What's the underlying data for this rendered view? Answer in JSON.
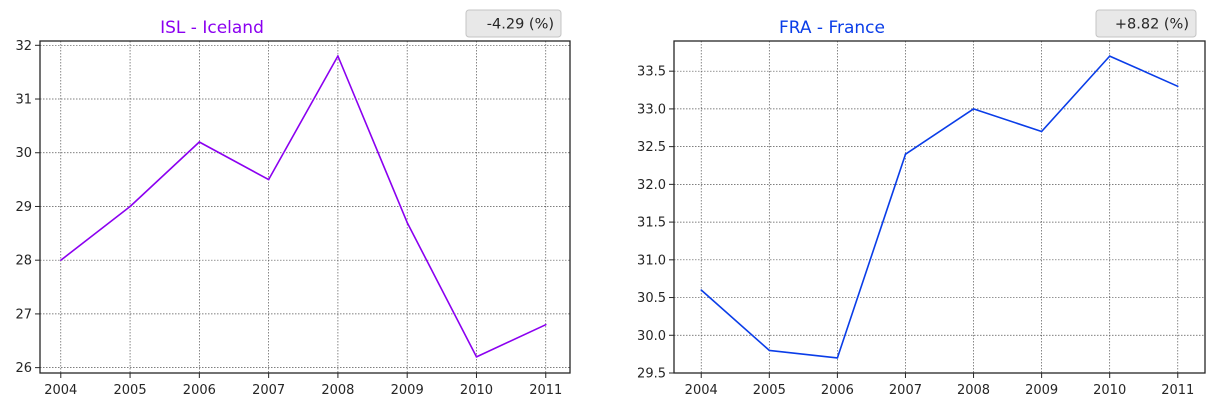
{
  "chart_data": [
    {
      "type": "line",
      "title": "ISL - Iceland",
      "badge": "-4.29 (%)",
      "color": "#8b00f0",
      "x": [
        2004,
        2005,
        2006,
        2007,
        2008,
        2009,
        2010,
        2011
      ],
      "series": [
        {
          "values": [
            28.0,
            29.0,
            30.2,
            29.5,
            31.8,
            28.7,
            26.2,
            26.8
          ]
        }
      ],
      "xlim": [
        2003.7,
        2011.35
      ],
      "ylim": [
        25.9,
        32.08
      ],
      "yticks": [
        26,
        27,
        28,
        29,
        30,
        31,
        32
      ],
      "ytick_labels": [
        "26",
        "27",
        "28",
        "29",
        "30",
        "31",
        "32"
      ],
      "xtick_labels": [
        "2004",
        "2005",
        "2006",
        "2007",
        "2008",
        "2009",
        "2010",
        "2011"
      ],
      "xlabel": "",
      "ylabel": "",
      "grid": true
    },
    {
      "type": "line",
      "title": "FRA - France",
      "badge": "+8.82 (%)",
      "color": "#0a3de8",
      "x": [
        2004,
        2005,
        2006,
        2007,
        2008,
        2009,
        2010,
        2011
      ],
      "series": [
        {
          "values": [
            30.6,
            29.8,
            29.7,
            32.4,
            33.0,
            32.7,
            33.7,
            33.3
          ]
        }
      ],
      "xlim": [
        2003.6,
        2011.4
      ],
      "ylim": [
        29.5,
        33.9
      ],
      "yticks": [
        29.5,
        30.0,
        30.5,
        31.0,
        31.5,
        32.0,
        32.5,
        33.0,
        33.5
      ],
      "ytick_labels": [
        "29.5",
        "30.0",
        "30.5",
        "31.0",
        "31.5",
        "32.0",
        "32.5",
        "33.0",
        "33.5"
      ],
      "xtick_labels": [
        "2004",
        "2005",
        "2006",
        "2007",
        "2008",
        "2009",
        "2010",
        "2011"
      ],
      "xlabel": "",
      "ylabel": "",
      "grid": true
    }
  ]
}
